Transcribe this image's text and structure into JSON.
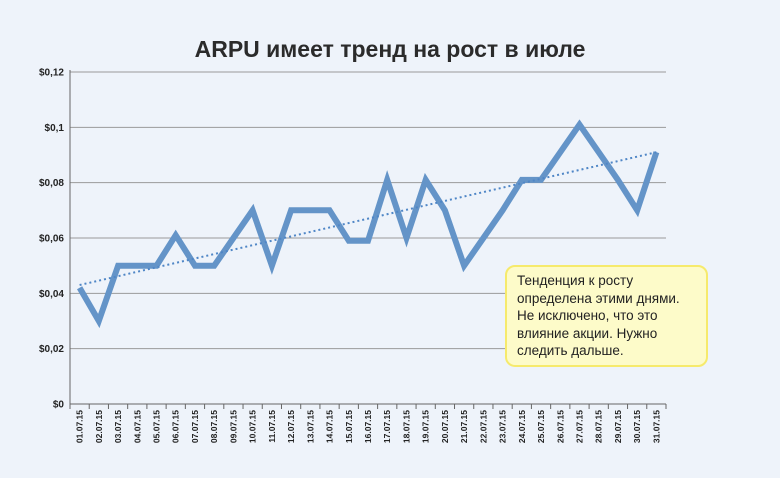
{
  "chart_data": {
    "type": "line",
    "title": "ARPU имеет тренд на рост в июле",
    "xlabel": "",
    "ylabel": "",
    "categories": [
      "01.07.15",
      "02.07.15",
      "03.07.15",
      "04.07.15",
      "05.07.15",
      "06.07.15",
      "07.07.15",
      "08.07.15",
      "09.07.15",
      "10.07.15",
      "11.07.15",
      "12.07.15",
      "13.07.15",
      "14.07.15",
      "15.07.15",
      "16.07.15",
      "17.07.15",
      "18.07.15",
      "19.07.15",
      "20.07.15",
      "21.07.15",
      "22.07.15",
      "23.07.15",
      "24.07.15",
      "25.07.15",
      "26.07.15",
      "27.07.15",
      "28.07.15",
      "29.07.15",
      "30.07.15",
      "31.07.15"
    ],
    "series": [
      {
        "name": "",
        "values": [
          0.042,
          0.03,
          0.05,
          0.05,
          0.05,
          0.061,
          0.05,
          0.05,
          0.06,
          0.07,
          0.05,
          0.07,
          0.07,
          0.07,
          0.059,
          0.059,
          0.081,
          0.06,
          0.081,
          0.07,
          0.05,
          0.06,
          0.07,
          0.081,
          0.081,
          0.091,
          0.101,
          0.091,
          0.081,
          0.07,
          0.091
        ]
      }
    ],
    "trendline": {
      "style": "dotted",
      "start": 0.043,
      "end": 0.091
    },
    "ylim": [
      0,
      0.12
    ],
    "yticks": [
      0,
      0.02,
      0.04,
      0.06,
      0.08,
      0.1,
      0.12
    ],
    "ytick_labels": [
      "$0",
      "$0,02",
      "$0,04",
      "$0,06",
      "$0,08",
      "$0,1",
      "$0,12"
    ],
    "grid": true,
    "legend": "none",
    "colors": {
      "line": "#6494c8",
      "trend": "#4f86c6",
      "grid": "#9a9a9a",
      "axis": "#666666"
    }
  },
  "annotation": {
    "lines": [
      "Тенденция к росту",
      "определена этими днями.",
      "Не исключено, что это",
      "влияние акции. Нужно",
      "следить дальше."
    ],
    "colors": {
      "fill": "#fdfbc9",
      "border": "#f6ea6c"
    }
  }
}
